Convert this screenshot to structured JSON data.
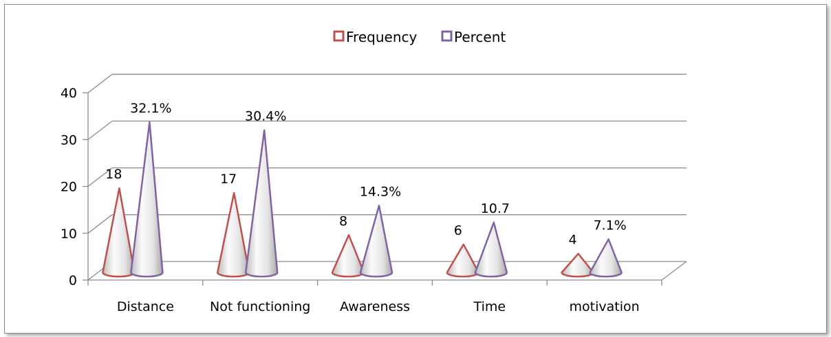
{
  "chart_data": {
    "type": "bar",
    "style": "3d-cone",
    "categories": [
      "Distance",
      "Not functioning",
      "Awareness",
      "Time",
      "motivation"
    ],
    "series": [
      {
        "name": "Frequency",
        "color": "#c0504d",
        "values": [
          18,
          17,
          8,
          6,
          4
        ],
        "labels": [
          "18",
          "17",
          "8",
          "6",
          "4"
        ]
      },
      {
        "name": "Percent",
        "color": "#8064a2",
        "values": [
          32.1,
          30.4,
          14.3,
          10.7,
          7.1
        ],
        "labels": [
          "32.1%",
          "30.4%",
          "14.3%",
          "10.7",
          "7.1%"
        ]
      }
    ],
    "ylim": [
      0,
      40
    ],
    "yticks": [
      "0",
      "10",
      "20",
      "30",
      "40"
    ],
    "grid": true,
    "legend": "top"
  }
}
